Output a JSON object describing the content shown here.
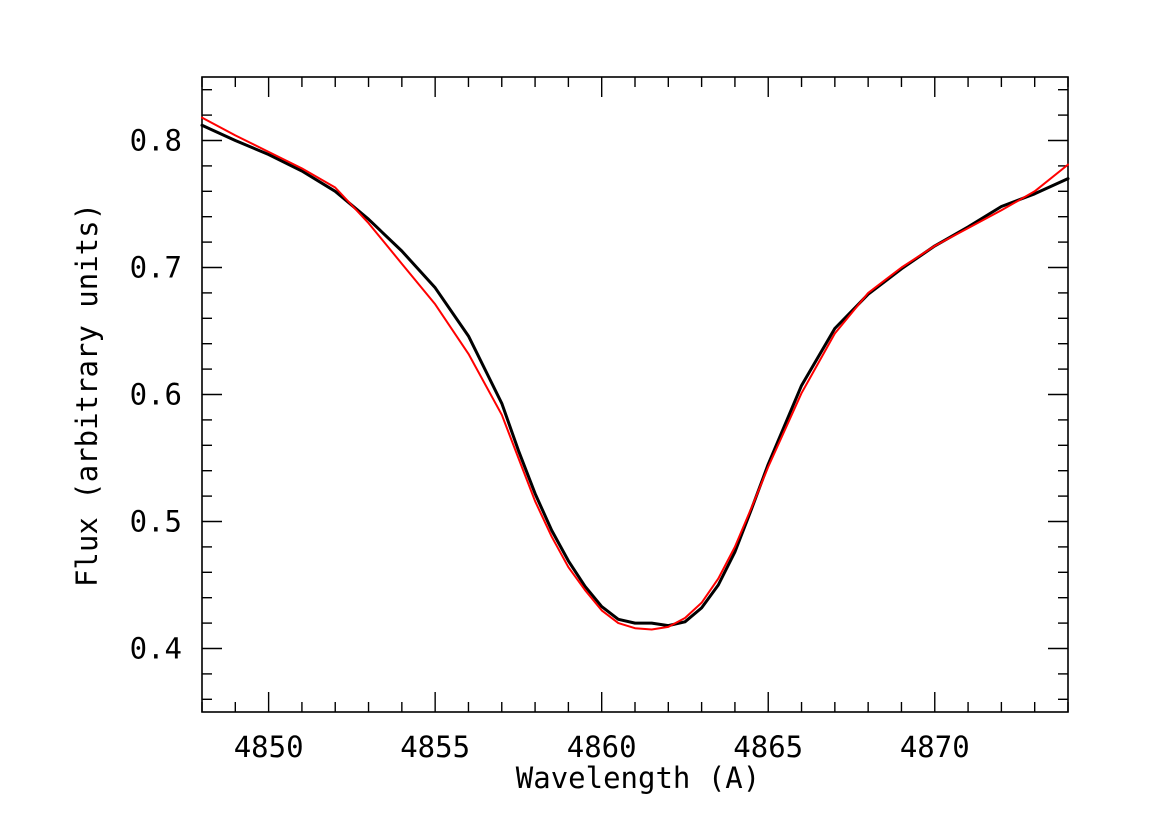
{
  "chart_data": {
    "type": "line",
    "xlabel": "Wavelength (A)",
    "ylabel": "Flux (arbitrary units)",
    "xlim": [
      4848.0,
      4874.0
    ],
    "ylim": [
      0.35,
      0.85
    ],
    "xticks_major": [
      4850,
      4855,
      4860,
      4865,
      4870
    ],
    "xtick_labels": [
      "4850",
      "4855",
      "4860",
      "4865",
      "4870"
    ],
    "yticks_major": [
      0.4,
      0.5,
      0.6,
      0.7,
      0.8
    ],
    "ytick_labels": [
      "0.4",
      "0.5",
      "0.6",
      "0.7",
      "0.8"
    ],
    "grid": false,
    "series": [
      {
        "color": "#000000",
        "x": [
          4848.0,
          4849.0,
          4850.0,
          4851.0,
          4852.0,
          4853.0,
          4854.0,
          4855.0,
          4856.0,
          4857.0,
          4857.5,
          4858.0,
          4858.5,
          4859.0,
          4859.5,
          4860.0,
          4860.5,
          4861.0,
          4861.5,
          4862.0,
          4862.5,
          4863.0,
          4863.5,
          4864.0,
          4864.5,
          4865.0,
          4866.0,
          4867.0,
          4868.0,
          4869.0,
          4870.0,
          4871.0,
          4872.0,
          4873.0,
          4874.0
        ],
        "values": [
          0.812,
          0.8,
          0.789,
          0.776,
          0.76,
          0.738,
          0.713,
          0.684,
          0.646,
          0.593,
          0.556,
          0.522,
          0.493,
          0.469,
          0.449,
          0.433,
          0.423,
          0.42,
          0.42,
          0.418,
          0.421,
          0.432,
          0.45,
          0.476,
          0.51,
          0.545,
          0.607,
          0.652,
          0.679,
          0.699,
          0.717,
          0.732,
          0.748,
          0.758,
          0.77
        ]
      },
      {
        "color": "#ff0000",
        "x": [
          4848.0,
          4849.0,
          4850.0,
          4851.0,
          4852.0,
          4853.0,
          4854.0,
          4855.0,
          4856.0,
          4857.0,
          4857.5,
          4858.0,
          4858.5,
          4859.0,
          4859.5,
          4860.0,
          4860.5,
          4861.0,
          4861.5,
          4862.0,
          4862.5,
          4863.0,
          4863.5,
          4864.0,
          4864.5,
          4865.0,
          4866.0,
          4867.0,
          4868.0,
          4869.0,
          4870.0,
          4871.0,
          4872.0,
          4873.0,
          4874.0
        ],
        "values": [
          0.818,
          0.804,
          0.791,
          0.778,
          0.763,
          0.735,
          0.703,
          0.671,
          0.632,
          0.584,
          0.55,
          0.516,
          0.488,
          0.464,
          0.446,
          0.43,
          0.42,
          0.416,
          0.415,
          0.417,
          0.424,
          0.436,
          0.455,
          0.48,
          0.511,
          0.543,
          0.601,
          0.648,
          0.68,
          0.7,
          0.717,
          0.731,
          0.745,
          0.76,
          0.781
        ]
      }
    ]
  }
}
